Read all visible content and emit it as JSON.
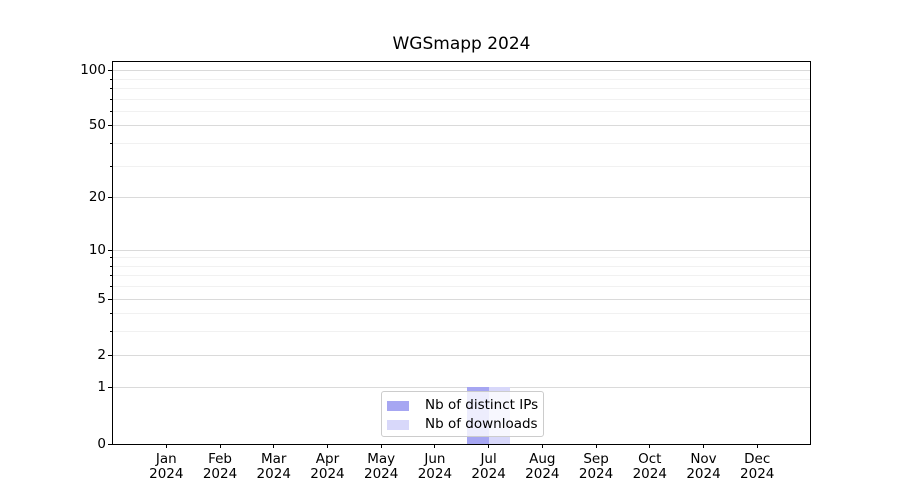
{
  "title": "WGSmapp 2024",
  "chart_data": {
    "type": "bar",
    "title": "WGSmapp 2024",
    "categories": [
      "Jan",
      "Feb",
      "Mar",
      "Apr",
      "May",
      "Jun",
      "Jul",
      "Aug",
      "Sep",
      "Oct",
      "Nov",
      "Dec"
    ],
    "category_year": "2024",
    "series": [
      {
        "name": "Nb of distinct IPs",
        "color": "#a6a6f2",
        "values": [
          0,
          0,
          0,
          0,
          0,
          0,
          1,
          0,
          0,
          0,
          0,
          0
        ]
      },
      {
        "name": "Nb of downloads",
        "color": "#d8d8fa",
        "values": [
          0,
          0,
          0,
          0,
          0,
          0,
          1,
          0,
          0,
          0,
          0,
          0
        ]
      }
    ],
    "yscale": "log1p",
    "ylim": [
      0,
      111
    ],
    "y_major_ticks": [
      0,
      1,
      2,
      5,
      10,
      20,
      50,
      100
    ],
    "y_minor_ticks": [
      3,
      4,
      6,
      7,
      8,
      9,
      30,
      40,
      60,
      70,
      80,
      90
    ],
    "grid": "horizontal",
    "legend_position": "lower center-right"
  }
}
